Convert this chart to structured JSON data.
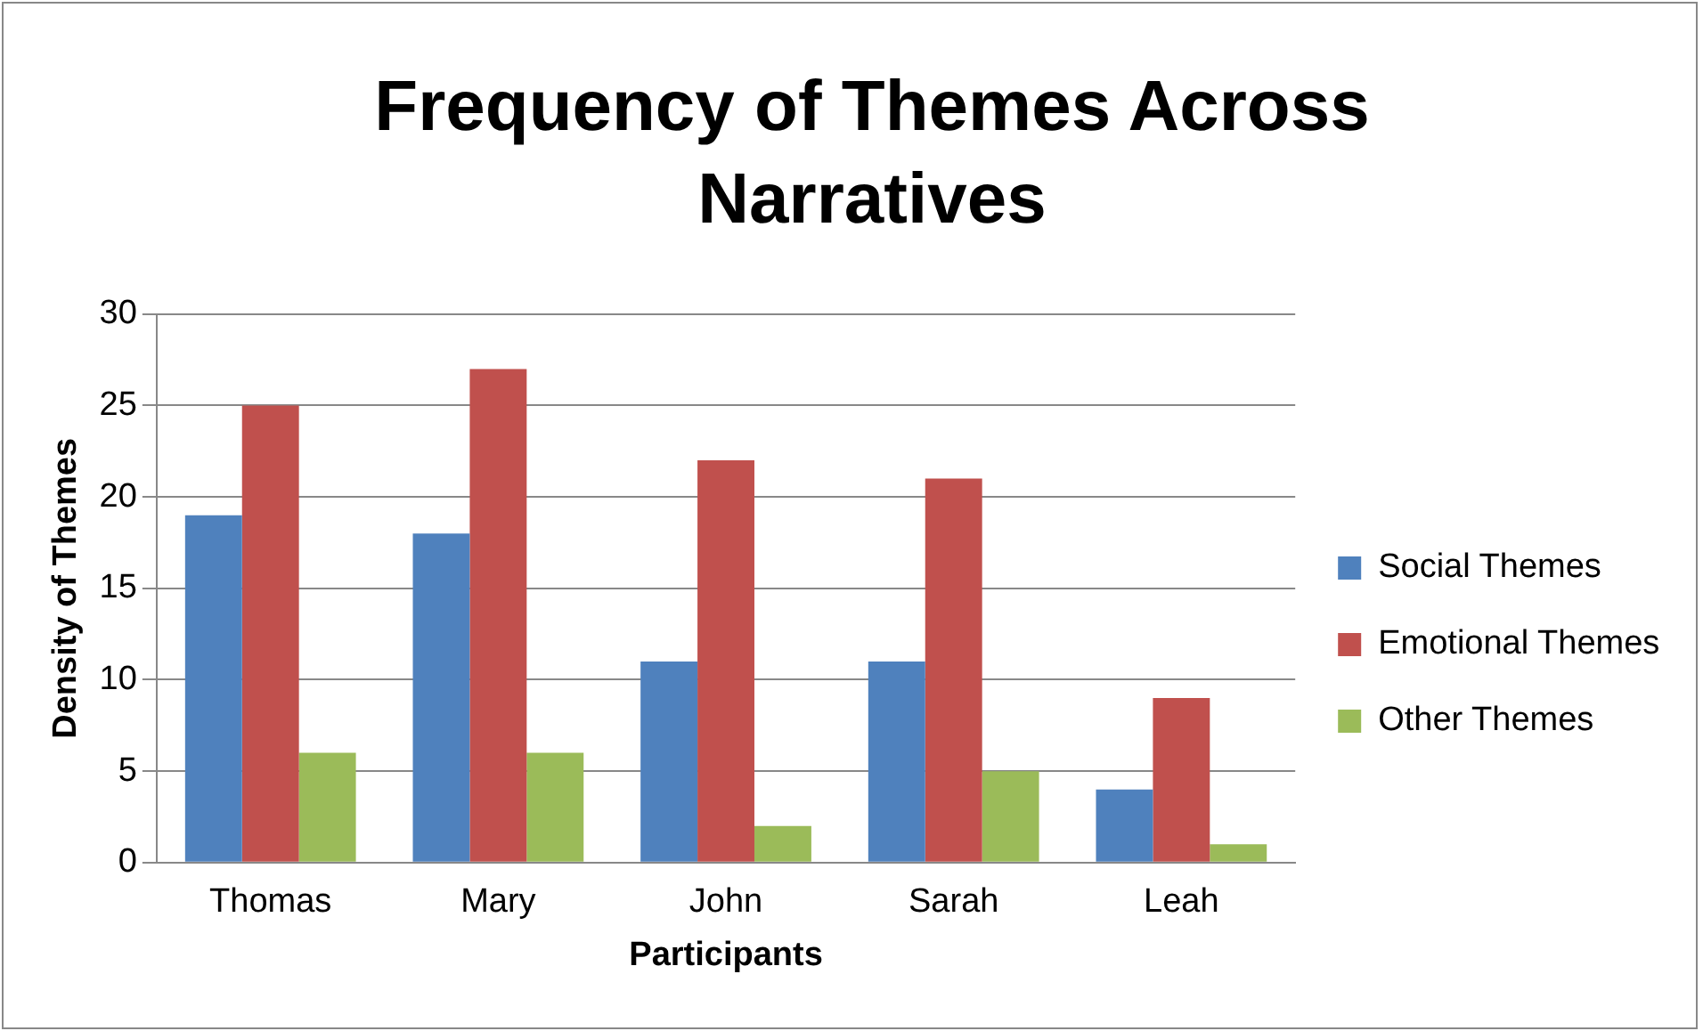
{
  "chart_data": {
    "type": "bar",
    "title": "Frequency of Themes Across Narratives",
    "xlabel": "Participants",
    "ylabel": "Density of Themes",
    "categories": [
      "Thomas",
      "Mary",
      "John",
      "Sarah",
      "Leah"
    ],
    "series": [
      {
        "name": "Social Themes",
        "color": "#4f81bd",
        "values": [
          19,
          18,
          11,
          11,
          4
        ]
      },
      {
        "name": "Emotional Themes",
        "color": "#c0504d",
        "values": [
          25,
          27,
          22,
          21,
          9
        ]
      },
      {
        "name": "Other Themes",
        "color": "#9bbb59",
        "values": [
          6,
          6,
          2,
          5,
          1
        ]
      }
    ],
    "ylim": [
      0,
      30
    ],
    "yticks": [
      0,
      5,
      10,
      15,
      20,
      25,
      30
    ],
    "grid": "y",
    "legend": "right"
  }
}
